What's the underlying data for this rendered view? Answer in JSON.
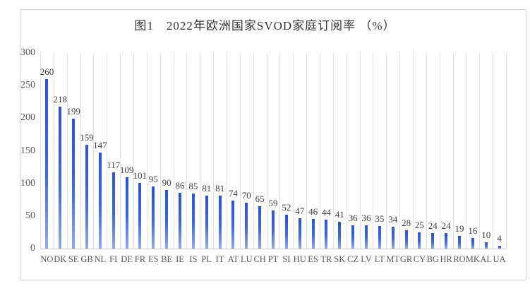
{
  "title": "图1　2022年欧洲国家SVOD家庭订阅率 （%）",
  "chart_data": {
    "type": "bar",
    "title": "图1　2022年欧洲国家SVOD家庭订阅率 （%）",
    "categories": [
      "NO",
      "DK",
      "SE",
      "GB",
      "NL",
      "FI",
      "DE",
      "FR",
      "ES",
      "BE",
      "IE",
      "IS",
      "PL",
      "IT",
      "AT",
      "LU",
      "CH",
      "PT",
      "SI",
      "HU",
      "ES",
      "TR",
      "SK",
      "CZ",
      "LV",
      "LT",
      "MT",
      "GR",
      "CY",
      "BG",
      "HR",
      "RO",
      "MK",
      "AL",
      "UA"
    ],
    "values": [
      260,
      218,
      199,
      159,
      147,
      117,
      109,
      101,
      95,
      90,
      86,
      85,
      81,
      81,
      74,
      70,
      65,
      59,
      52,
      47,
      46,
      44,
      41,
      36,
      36,
      35,
      34,
      28,
      25,
      24,
      24,
      19,
      16,
      10,
      4
    ],
    "xlabel": "",
    "ylabel": "",
    "ylim": [
      0,
      300
    ],
    "yticks": [
      0,
      50,
      100,
      150,
      200,
      250,
      300
    ],
    "grid": "vertical-only",
    "legend": "none",
    "value_labels_shown": true
  },
  "colors": {
    "bar_gradient_top": "#2a55d0",
    "bar_gradient_bottom": "#93aae9",
    "gridline": "#e3e3e3",
    "axis_line": "#c6c6c6",
    "tick_label": "#595959",
    "value_label": "#3f3f3f",
    "title": "#333333",
    "card_border": "#d4d4d4",
    "background": "#ffffff"
  }
}
